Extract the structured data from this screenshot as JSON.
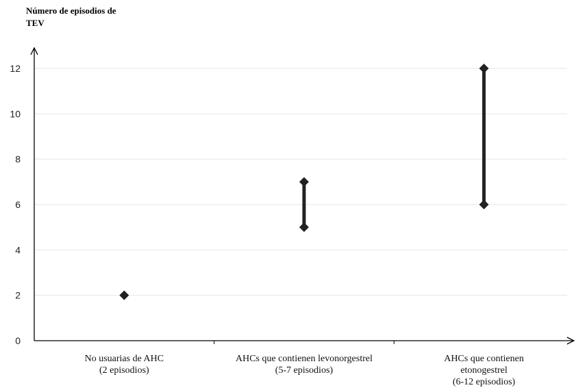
{
  "chart_data": {
    "type": "range",
    "ylabel_lines": [
      "Número de episodios de",
      "TEV"
    ],
    "ylim": [
      0,
      12
    ],
    "yticks": [
      0,
      2,
      4,
      6,
      8,
      10,
      12
    ],
    "grid": true,
    "categories": [
      {
        "label_lines": [
          "No usuarias de AHC",
          "(2 episodios)"
        ],
        "low": 2,
        "high": 2
      },
      {
        "label_lines": [
          "AHCs que contienen levonorgestrel",
          "(5-7 episodios)"
        ],
        "low": 5,
        "high": 7
      },
      {
        "label_lines": [
          "AHCs que contienen",
          "etonogestrel",
          "(6-12 episodios)"
        ],
        "low": 6,
        "high": 12
      }
    ]
  }
}
